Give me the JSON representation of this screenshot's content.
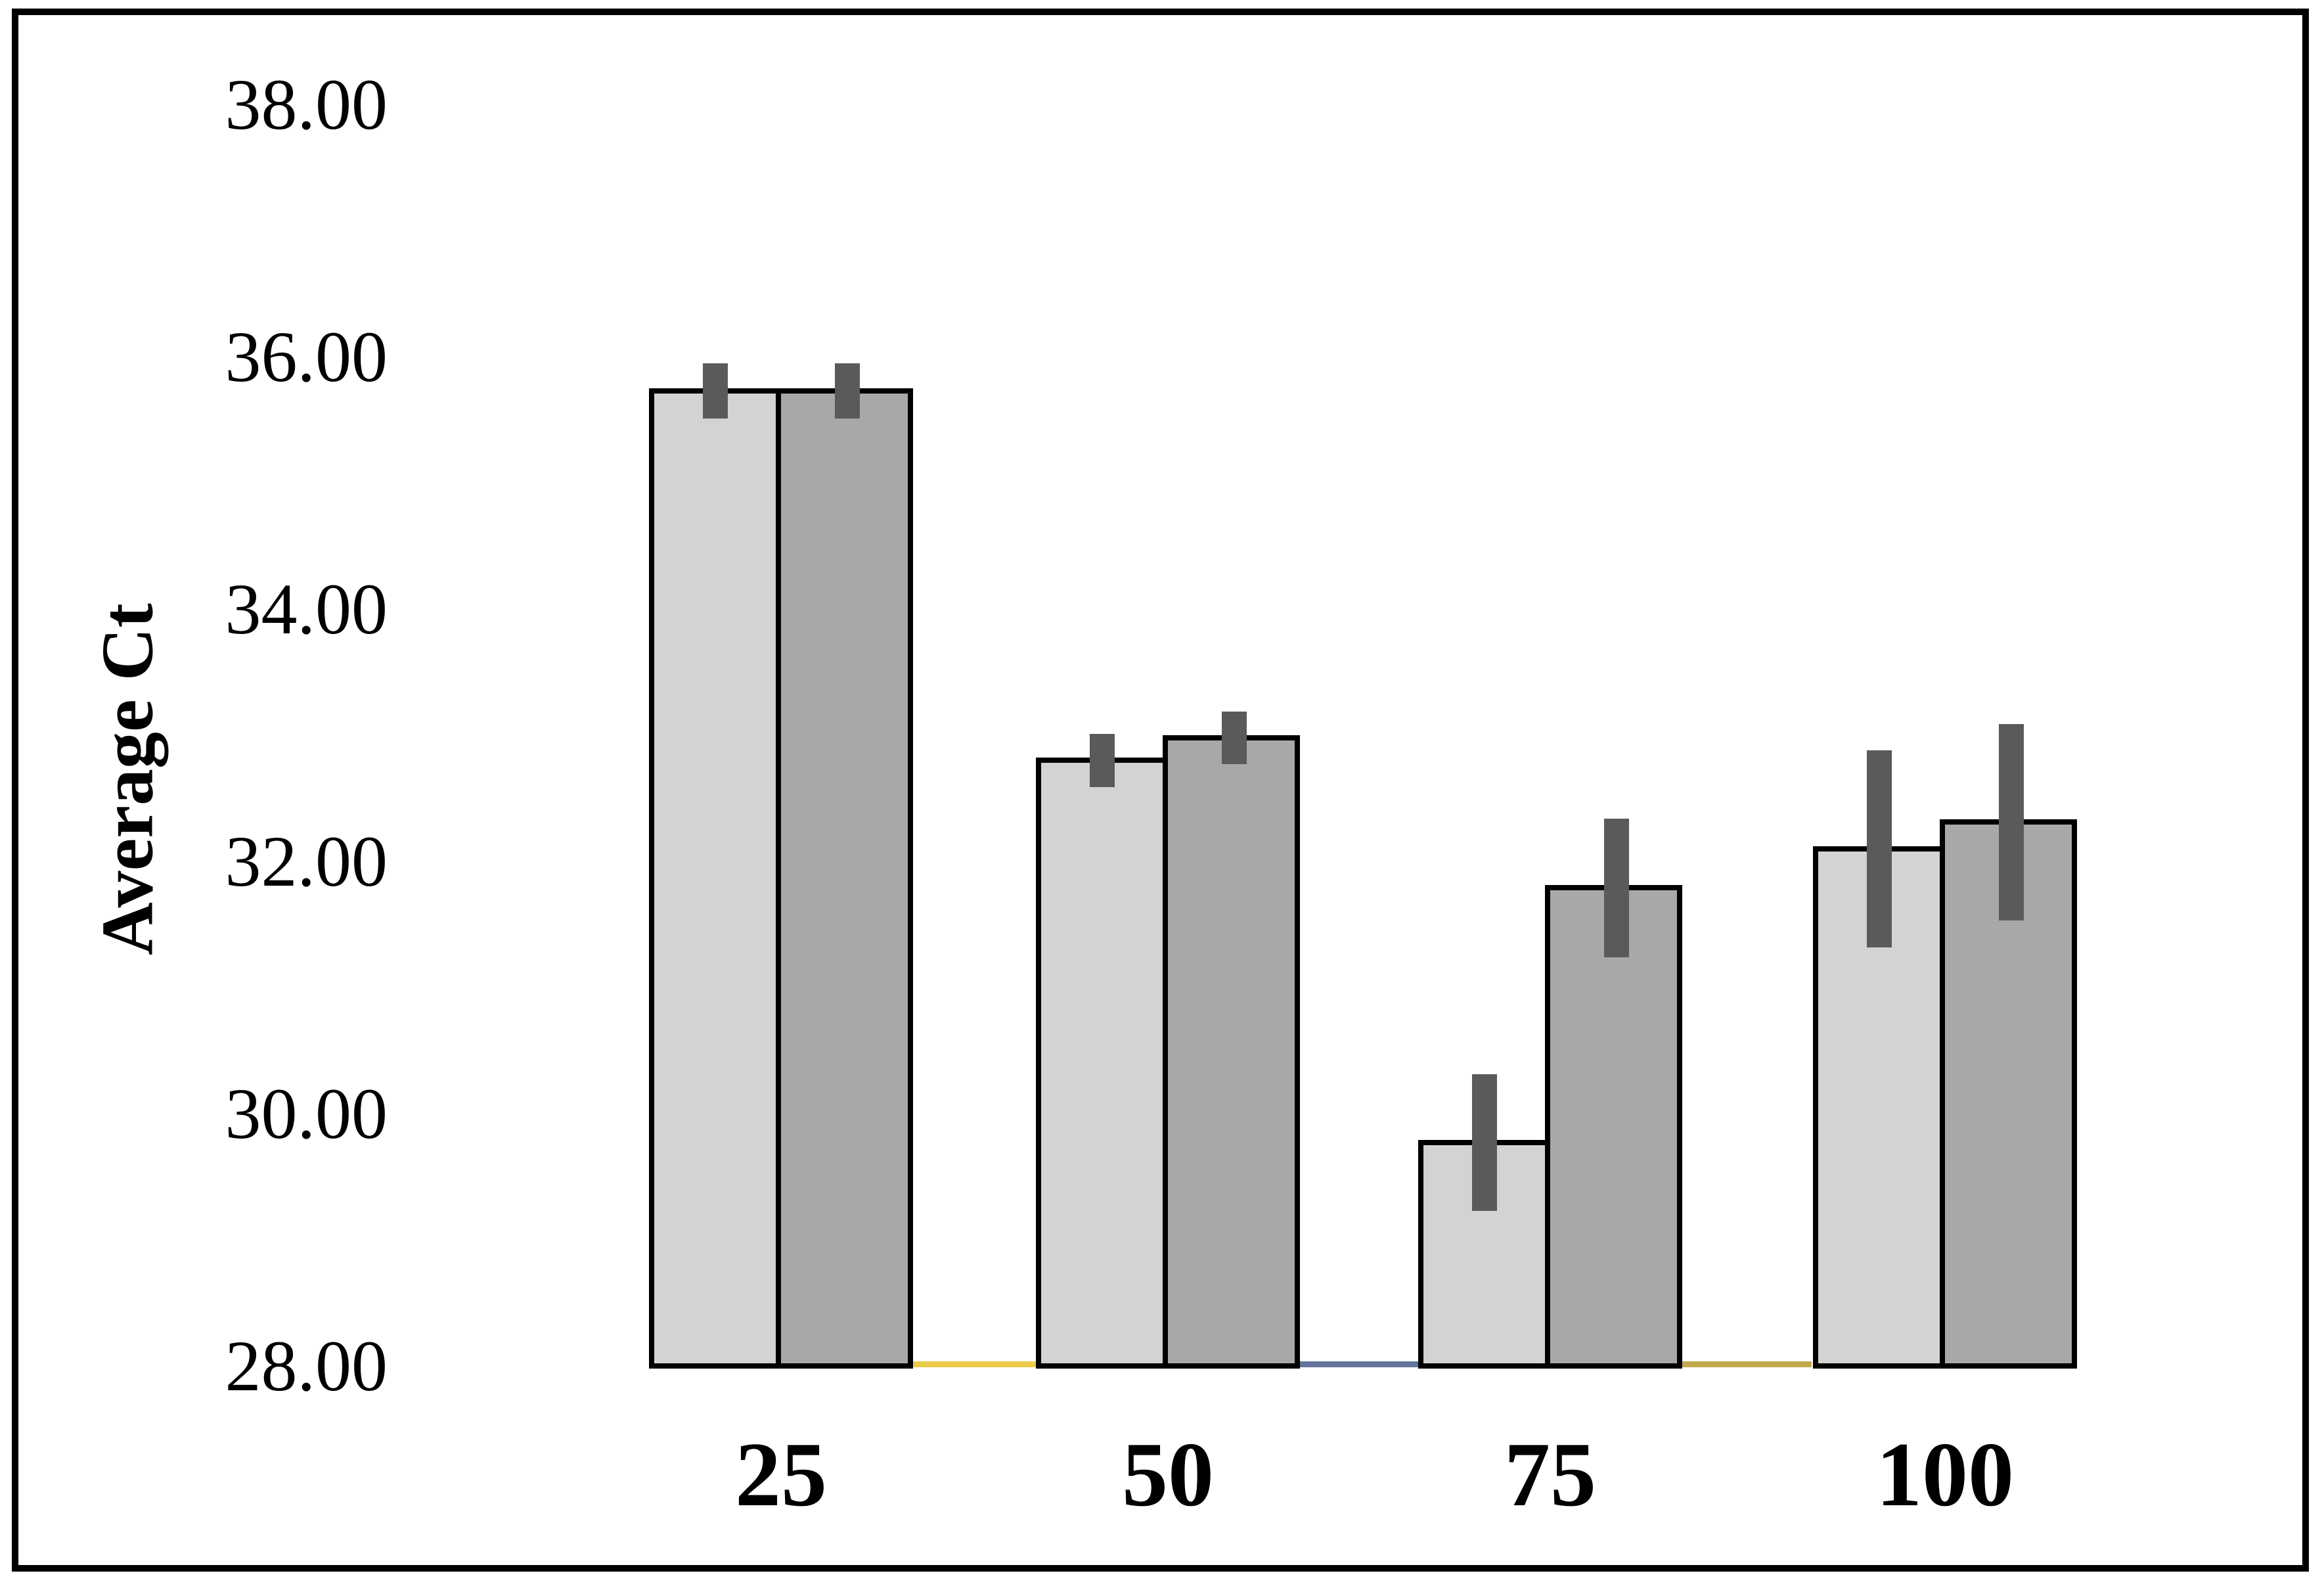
{
  "figure": {
    "background": "#FFFFFF",
    "border_color": "#000000"
  },
  "chart_data": {
    "type": "bar",
    "title": "",
    "xlabel": "",
    "ylabel": "Average Ct",
    "ylim": [
      28,
      38
    ],
    "grid": false,
    "legend": "none",
    "categories": [
      "25",
      "50",
      "75",
      "100"
    ],
    "yticks": [
      {
        "value": 38,
        "label": "38.00"
      },
      {
        "value": 36,
        "label": "36.00"
      },
      {
        "value": 34,
        "label": "34.00"
      },
      {
        "value": 32,
        "label": "32.00"
      },
      {
        "value": 30,
        "label": "30.00"
      },
      {
        "value": 28,
        "label": "28.00"
      }
    ],
    "series": [
      {
        "name": "light-gray",
        "color": "#D3D3D3",
        "values": [
          35.73,
          32.8,
          29.77,
          32.1
        ],
        "errors": [
          0.22,
          0.21,
          0.54,
          0.78
        ]
      },
      {
        "name": "dark-gray",
        "color": "#A8A8A8",
        "values": [
          35.73,
          32.98,
          31.79,
          32.31
        ],
        "errors": [
          0.22,
          0.21,
          0.55,
          0.78
        ]
      }
    ],
    "error_bar_color": "#5A5A5A",
    "bar_border_color": "#000000",
    "baseline_segments": [
      {
        "x1": 1386,
        "x2": 1578,
        "color": "#EDCB4B"
      },
      {
        "x1": 1972,
        "x2": 2164,
        "color": "#64749E"
      },
      {
        "x1": 2556,
        "x2": 2758,
        "color": "#BFA94A"
      }
    ]
  }
}
